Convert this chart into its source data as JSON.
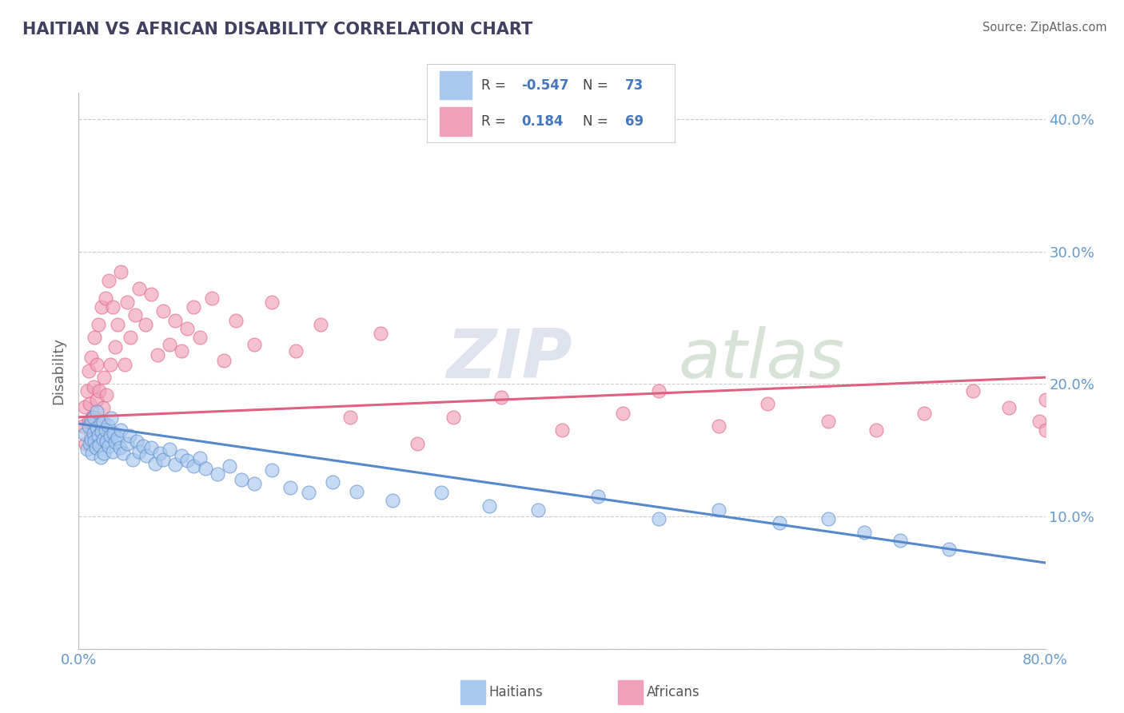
{
  "title": "HAITIAN VS AFRICAN DISABILITY CORRELATION CHART",
  "source": "Source: ZipAtlas.com",
  "ylabel": "Disability",
  "xlim": [
    0.0,
    0.8
  ],
  "ylim": [
    0.0,
    0.42
  ],
  "color_blue": "#A8C8ED",
  "color_pink": "#F0A0B8",
  "color_blue_line": "#5588CC",
  "color_pink_line": "#E06080",
  "color_title": "#404060",
  "color_source": "#666666",
  "color_axis_label": "#666666",
  "color_tick": "#6699CC",
  "color_legend_text": "#4477BB",
  "watermark_zip": "ZIP",
  "watermark_atlas": "atlas",
  "haitians_x": [
    0.005,
    0.007,
    0.008,
    0.009,
    0.01,
    0.01,
    0.011,
    0.012,
    0.012,
    0.013,
    0.014,
    0.015,
    0.015,
    0.016,
    0.017,
    0.018,
    0.018,
    0.019,
    0.02,
    0.02,
    0.021,
    0.022,
    0.023,
    0.024,
    0.025,
    0.026,
    0.027,
    0.028,
    0.029,
    0.03,
    0.032,
    0.034,
    0.035,
    0.037,
    0.04,
    0.042,
    0.045,
    0.048,
    0.05,
    0.053,
    0.056,
    0.06,
    0.063,
    0.067,
    0.07,
    0.075,
    0.08,
    0.085,
    0.09,
    0.095,
    0.1,
    0.105,
    0.115,
    0.125,
    0.135,
    0.145,
    0.16,
    0.175,
    0.19,
    0.21,
    0.23,
    0.26,
    0.3,
    0.34,
    0.38,
    0.43,
    0.48,
    0.53,
    0.58,
    0.62,
    0.65,
    0.68,
    0.72
  ],
  "haitians_y": [
    0.162,
    0.151,
    0.168,
    0.155,
    0.158,
    0.173,
    0.148,
    0.163,
    0.175,
    0.157,
    0.152,
    0.167,
    0.179,
    0.161,
    0.154,
    0.17,
    0.145,
    0.164,
    0.158,
    0.171,
    0.148,
    0.165,
    0.157,
    0.169,
    0.153,
    0.161,
    0.174,
    0.149,
    0.163,
    0.156,
    0.159,
    0.152,
    0.165,
    0.148,
    0.155,
    0.161,
    0.143,
    0.157,
    0.149,
    0.153,
    0.146,
    0.152,
    0.14,
    0.148,
    0.143,
    0.151,
    0.139,
    0.146,
    0.142,
    0.138,
    0.144,
    0.136,
    0.132,
    0.138,
    0.128,
    0.125,
    0.135,
    0.122,
    0.118,
    0.126,
    0.119,
    0.112,
    0.118,
    0.108,
    0.105,
    0.115,
    0.098,
    0.105,
    0.095,
    0.098,
    0.088,
    0.082,
    0.075
  ],
  "africans_x": [
    0.004,
    0.005,
    0.006,
    0.007,
    0.008,
    0.008,
    0.009,
    0.01,
    0.01,
    0.011,
    0.012,
    0.013,
    0.014,
    0.015,
    0.015,
    0.016,
    0.017,
    0.018,
    0.019,
    0.02,
    0.021,
    0.022,
    0.023,
    0.025,
    0.026,
    0.028,
    0.03,
    0.032,
    0.035,
    0.038,
    0.04,
    0.043,
    0.047,
    0.05,
    0.055,
    0.06,
    0.065,
    0.07,
    0.075,
    0.08,
    0.085,
    0.09,
    0.095,
    0.1,
    0.11,
    0.12,
    0.13,
    0.145,
    0.16,
    0.18,
    0.2,
    0.225,
    0.25,
    0.28,
    0.31,
    0.35,
    0.4,
    0.45,
    0.48,
    0.53,
    0.57,
    0.62,
    0.66,
    0.7,
    0.74,
    0.77,
    0.795,
    0.8,
    0.8
  ],
  "africans_y": [
    0.168,
    0.183,
    0.155,
    0.195,
    0.172,
    0.21,
    0.185,
    0.162,
    0.22,
    0.175,
    0.198,
    0.235,
    0.165,
    0.215,
    0.188,
    0.245,
    0.195,
    0.172,
    0.258,
    0.182,
    0.205,
    0.265,
    0.192,
    0.278,
    0.215,
    0.258,
    0.228,
    0.245,
    0.285,
    0.215,
    0.262,
    0.235,
    0.252,
    0.272,
    0.245,
    0.268,
    0.222,
    0.255,
    0.23,
    0.248,
    0.225,
    0.242,
    0.258,
    0.235,
    0.265,
    0.218,
    0.248,
    0.23,
    0.262,
    0.225,
    0.245,
    0.175,
    0.238,
    0.155,
    0.175,
    0.19,
    0.165,
    0.178,
    0.195,
    0.168,
    0.185,
    0.172,
    0.165,
    0.178,
    0.195,
    0.182,
    0.172,
    0.188,
    0.165
  ]
}
